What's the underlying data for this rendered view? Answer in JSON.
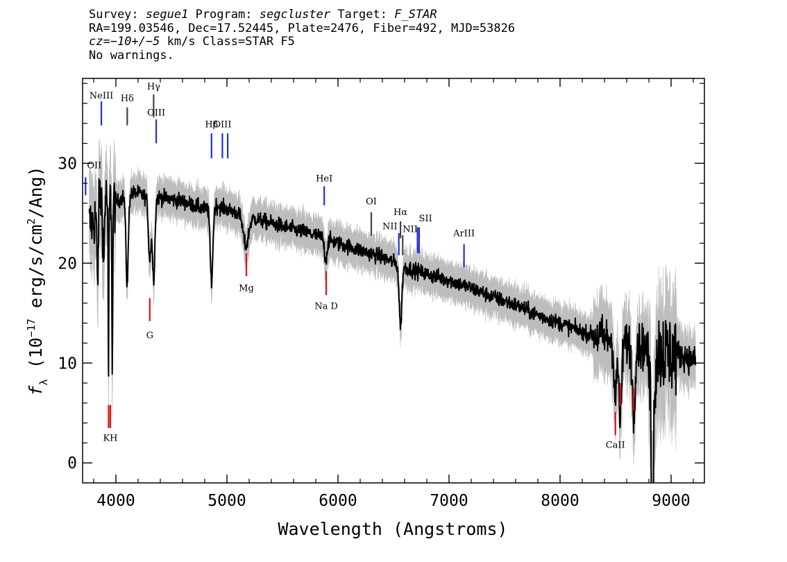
{
  "header": {
    "survey_label": "Survey:",
    "survey": "segue1",
    "program_label": "Program:",
    "program": "segcluster",
    "target_label": "Target:",
    "target": "F_STAR",
    "line2": "RA=199.03546, Dec=17.52445, Plate=2476, Fiber=492, MJD=53826",
    "cz_label": "cz",
    "cz_value": "=−10+/−5",
    "cz_rest": " km/s Class=STAR F5",
    "warnings": "No warnings."
  },
  "chart_data": {
    "type": "line",
    "xlabel": "Wavelength (Angstroms)",
    "ylabel_prefix": "f",
    "ylabel_sub": "λ",
    "ylabel_unit_a": " (10",
    "ylabel_exp1": "−17",
    "ylabel_unit_b": " erg/s/cm",
    "ylabel_exp2": "2",
    "ylabel_unit_c": "/Ang)",
    "xlim": [
      3700,
      9300
    ],
    "ylim": [
      -2,
      38.5
    ],
    "x_ticks": [
      4000,
      5000,
      6000,
      7000,
      8000,
      9000
    ],
    "y_ticks": [
      0,
      10,
      20,
      30
    ],
    "x_tick_labels": [
      "4000",
      "5000",
      "6000",
      "7000",
      "8000",
      "9000"
    ],
    "y_tick_labels": [
      "0",
      "10",
      "20",
      "30"
    ],
    "colors": {
      "flux": "#000000",
      "error_band": "#bdbdbd",
      "emission": "#1f2fd6",
      "absorption": "#e01010",
      "dark_line": "#444444"
    },
    "continuum": [
      [
        3800,
        24.0
      ],
      [
        3850,
        26.5
      ],
      [
        3900,
        26.5
      ],
      [
        4000,
        26.0
      ],
      [
        4100,
        27.0
      ],
      [
        4200,
        27.0
      ],
      [
        4300,
        26.5
      ],
      [
        4400,
        26.6
      ],
      [
        4500,
        26.4
      ],
      [
        4600,
        26.2
      ],
      [
        4700,
        25.8
      ],
      [
        4800,
        25.4
      ],
      [
        4900,
        25.8
      ],
      [
        5000,
        25.4
      ],
      [
        5200,
        24.6
      ],
      [
        5400,
        24.0
      ],
      [
        5600,
        23.4
      ],
      [
        5800,
        22.8
      ],
      [
        6000,
        22.0
      ],
      [
        6200,
        21.3
      ],
      [
        6400,
        20.6
      ],
      [
        6600,
        19.6
      ],
      [
        6800,
        18.9
      ],
      [
        7000,
        18.3
      ],
      [
        7200,
        17.5
      ],
      [
        7400,
        16.6
      ],
      [
        7600,
        15.8
      ],
      [
        7800,
        14.8
      ],
      [
        8000,
        14.0
      ],
      [
        8200,
        13.1
      ],
      [
        8400,
        12.5
      ],
      [
        8600,
        12.0
      ],
      [
        8800,
        11.5
      ],
      [
        9000,
        11.0
      ],
      [
        9100,
        10.8
      ],
      [
        9220,
        10.2
      ]
    ],
    "absorption_features": [
      [
        3933,
        0.6,
        18.0
      ],
      [
        3968,
        0.6,
        17.5
      ],
      [
        3889,
        1.0,
        7.0
      ],
      [
        3835,
        1.0,
        8.0
      ],
      [
        4101,
        1.8,
        9.0
      ],
      [
        4305,
        2.0,
        6.0
      ],
      [
        4340,
        1.8,
        8.0
      ],
      [
        4861,
        2.0,
        7.5
      ],
      [
        5170,
        4.0,
        3.0
      ],
      [
        5890,
        2.0,
        2.0
      ],
      [
        6563,
        2.0,
        6.0
      ],
      [
        8498,
        2.0,
        6.0
      ],
      [
        8542,
        2.0,
        8.0
      ],
      [
        8662,
        2.0,
        7.0
      ],
      [
        8830,
        3.0,
        8.0
      ]
    ],
    "noise_regions": [
      [
        3700,
        4000,
        2.0
      ],
      [
        4000,
        8300,
        0.55
      ],
      [
        8300,
        8800,
        1.6
      ],
      [
        8800,
        9050,
        3.0
      ],
      [
        9050,
        9250,
        1.0
      ]
    ],
    "sample_step": 3,
    "emission_lines": [
      {
        "label": "OII",
        "wave": 3727,
        "lbl_y": 29.5,
        "y1": 26.8,
        "y2": 28.6,
        "color": "#1f2fd6",
        "anchor": "start"
      },
      {
        "label": "NeIII",
        "wave": 3869,
        "lbl_y": 36.5,
        "y1": 33.8,
        "y2": 36.2,
        "color": "#1f2fd6",
        "anchor": "middle"
      },
      {
        "label": "Hδ",
        "wave": 4102,
        "lbl_y": 36.2,
        "y1": 33.8,
        "y2": 35.6,
        "color": "#444444",
        "anchor": "middle"
      },
      {
        "label": "Hγ",
        "wave": 4340,
        "lbl_y": 37.4,
        "y1": 34.6,
        "y2": 36.9,
        "color": "#444444",
        "anchor": "middle"
      },
      {
        "label": "OIII",
        "wave": 4363,
        "lbl_y": 34.8,
        "y1": 32.0,
        "y2": 34.4,
        "color": "#1f2fd6",
        "anchor": "middle"
      },
      {
        "label": "Hβ",
        "wave": 4861,
        "lbl_y": 33.6,
        "y1": 30.5,
        "y2": 33.0,
        "color": "#1f2fd6",
        "anchor": "middle"
      },
      {
        "label": "OIII",
        "wave": 4959,
        "lbl_y": 33.6,
        "y1": 30.5,
        "y2": 33.0,
        "color": "#1f2fd6",
        "anchor": "middle"
      },
      {
        "label": "",
        "wave": 5007,
        "lbl_y": 0,
        "y1": 30.5,
        "y2": 33.0,
        "color": "#1f2fd6",
        "anchor": "middle"
      },
      {
        "label": "HeI",
        "wave": 5876,
        "lbl_y": 28.2,
        "y1": 25.8,
        "y2": 27.7,
        "color": "#1f2fd6",
        "anchor": "middle"
      },
      {
        "label": "OI",
        "wave": 6300,
        "lbl_y": 25.9,
        "y1": 22.7,
        "y2": 25.1,
        "color": "#444444",
        "anchor": "middle"
      },
      {
        "label": "NII",
        "wave": 6548,
        "lbl_y": 23.4,
        "y1": 20.8,
        "y2": 23.0,
        "color": "#1f2fd6",
        "anchor": "end"
      },
      {
        "label": "Hα",
        "wave": 6563,
        "lbl_y": 24.8,
        "y1": 22.5,
        "y2": 24.2,
        "color": "#444444",
        "anchor": "middle"
      },
      {
        "label": "",
        "wave": 6583,
        "lbl_y": 0,
        "y1": 20.8,
        "y2": 22.8,
        "color": "#444444",
        "anchor": "middle"
      },
      {
        "label": "SII",
        "wave": 6716,
        "lbl_y": 24.2,
        "y1": 21.0,
        "y2": 23.6,
        "color": "#1f2fd6",
        "anchor": "start"
      },
      {
        "label": "NII",
        "wave": 6731,
        "lbl_y": 23.1,
        "y1": 21.0,
        "y2": 23.6,
        "color": "#1f2fd6",
        "anchor": "end"
      },
      {
        "label": "ArIII",
        "wave": 7135,
        "lbl_y": 22.7,
        "y1": 19.6,
        "y2": 21.9,
        "color": "#1f2fd6",
        "anchor": "middle"
      }
    ],
    "absorption_lines": [
      {
        "label": "KH",
        "wave": 3950,
        "lbl_y": 2.2,
        "y1": 3.5,
        "y2": 5.8,
        "color": "#e01010"
      },
      {
        "label": "",
        "wave": 3934,
        "lbl_y": 0,
        "y1": 3.5,
        "y2": 5.8,
        "color": "#e01010"
      },
      {
        "label": "G",
        "wave": 4305,
        "lbl_y": 12.5,
        "y1": 14.2,
        "y2": 16.5,
        "color": "#e01010"
      },
      {
        "label": "Mg",
        "wave": 5175,
        "lbl_y": 17.2,
        "y1": 18.7,
        "y2": 21.0,
        "color": "#e01010"
      },
      {
        "label": "Na D",
        "wave": 5894,
        "lbl_y": 15.4,
        "y1": 16.8,
        "y2": 19.2,
        "color": "#e01010"
      },
      {
        "label": "CaII",
        "wave": 8498,
        "lbl_y": 1.5,
        "y1": 2.8,
        "y2": 5.1,
        "color": "#e01010"
      },
      {
        "label": "",
        "wave": 8542,
        "lbl_y": 0,
        "y1": 5.7,
        "y2": 8.0,
        "color": "#e01010"
      },
      {
        "label": "",
        "wave": 8662,
        "lbl_y": 0,
        "y1": 5.2,
        "y2": 7.5,
        "color": "#e01010"
      }
    ]
  }
}
